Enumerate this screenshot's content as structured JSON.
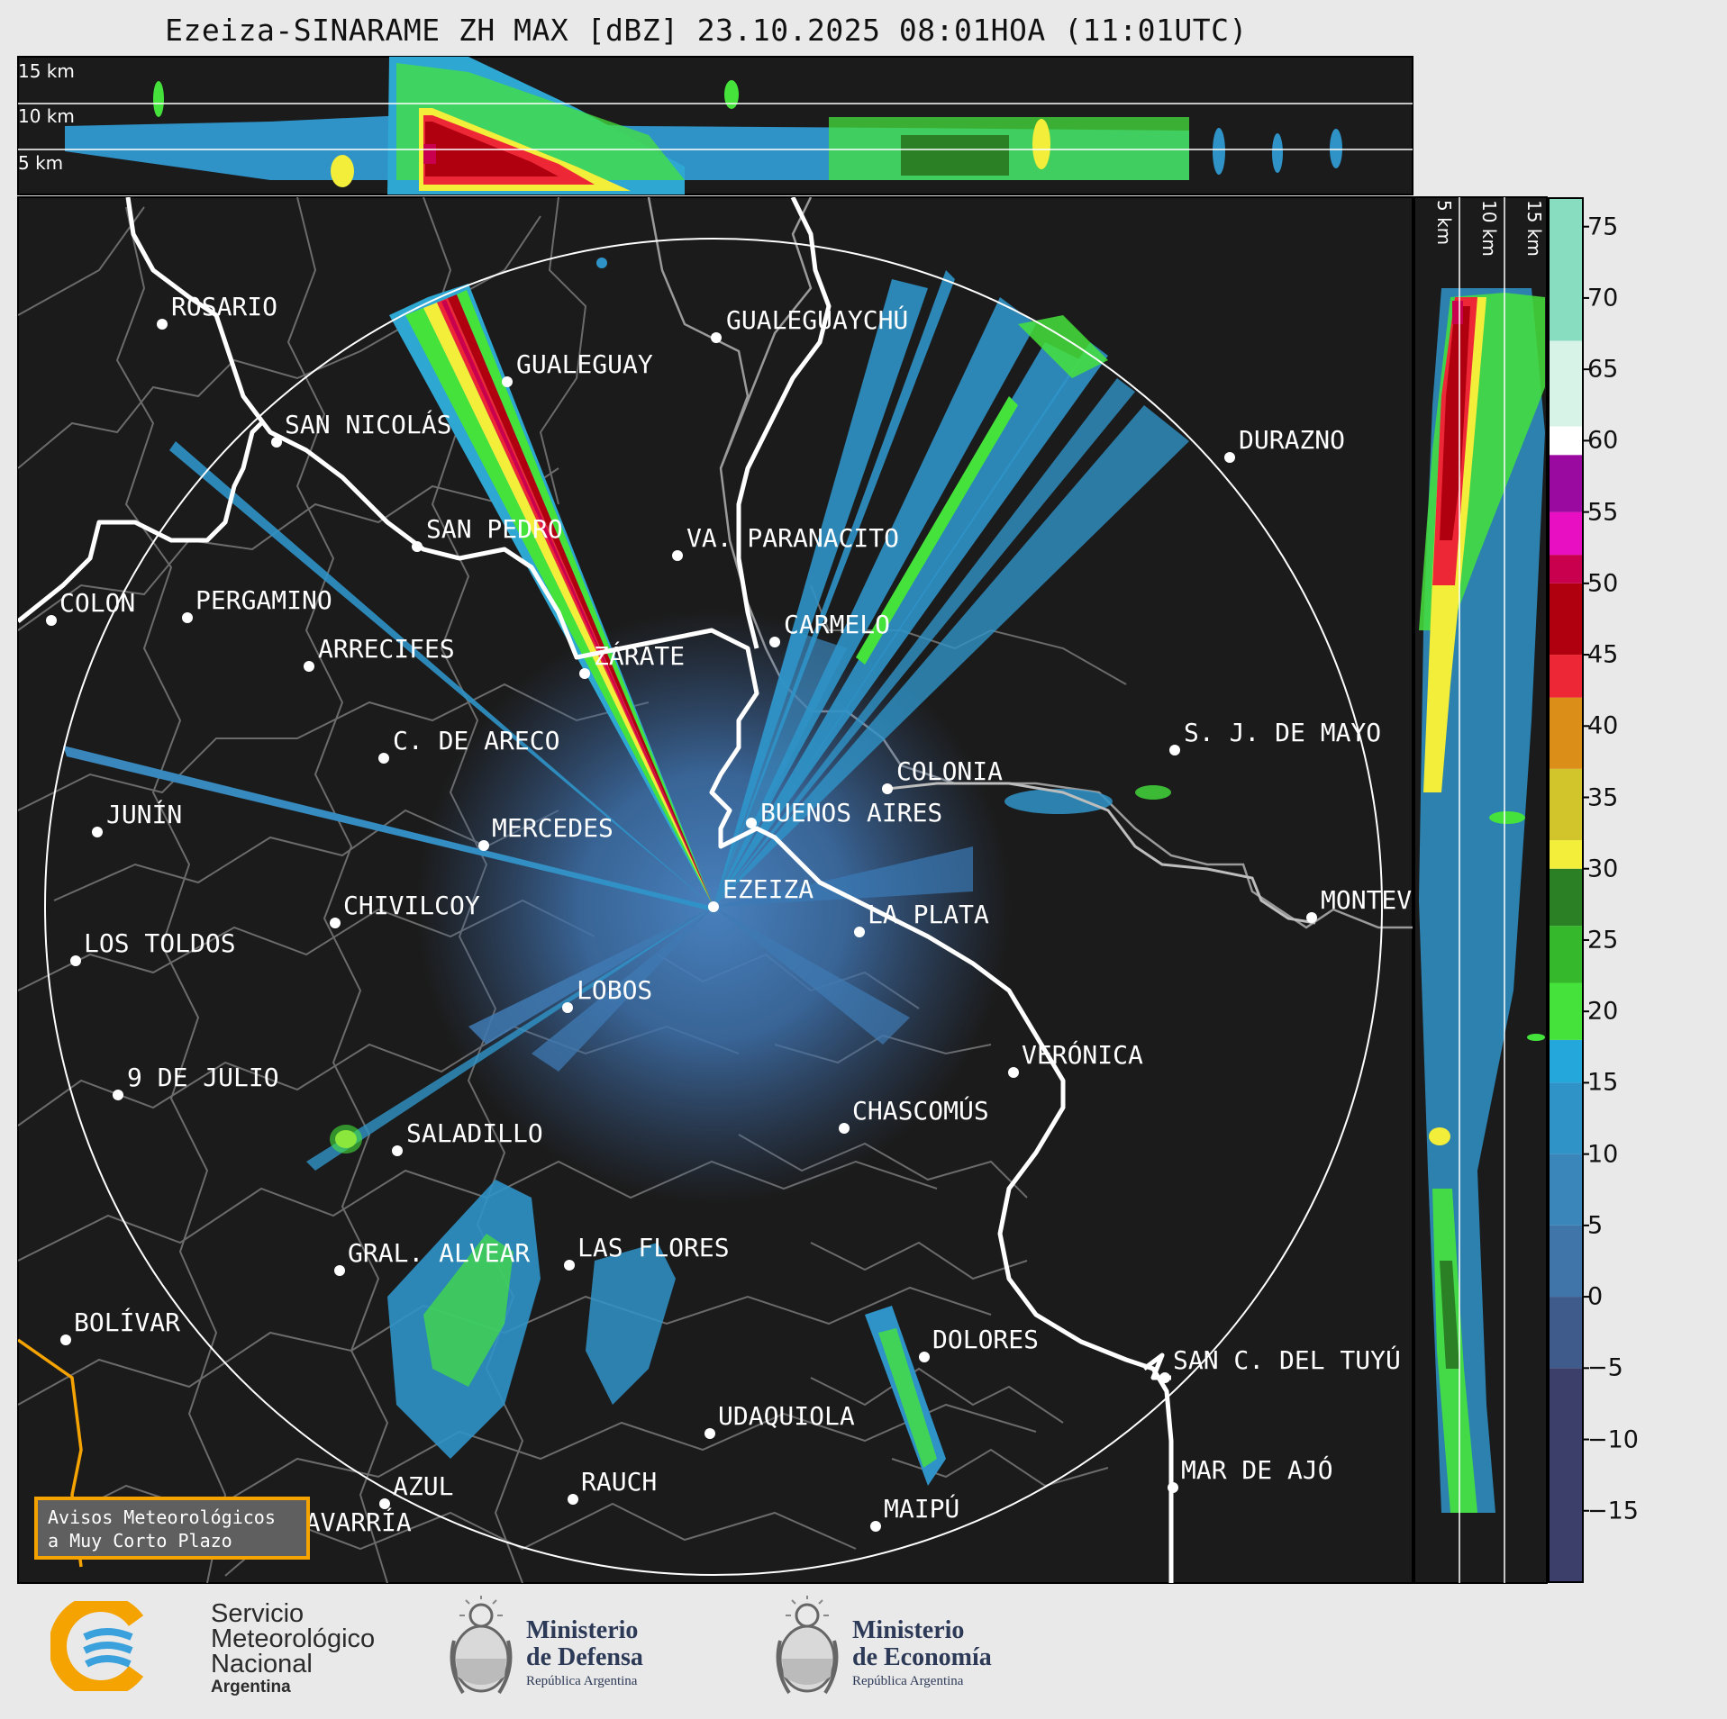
{
  "title": "Ezeiza-SINARAME ZH MAX [dBZ] 23.10.2025 08:01HOA (11:01UTC)",
  "top_panel": {
    "height_labels": [
      "15 km",
      "10 km",
      "5 km"
    ]
  },
  "side_panel": {
    "height_labels": [
      "5 km",
      "10 km",
      "15 km"
    ]
  },
  "colorbar": {
    "ticks": [
      "75",
      "70",
      "65",
      "60",
      "55",
      "50",
      "45",
      "40",
      "35",
      "30",
      "25",
      "20",
      "15",
      "10",
      "5",
      "0",
      "−5",
      "−10",
      "−15"
    ],
    "min_dbz": -20,
    "max_dbz": 77,
    "colors": [
      {
        "from": -20,
        "to": -5,
        "color": "#3b3f6a"
      },
      {
        "from": -5,
        "to": 0,
        "color": "#3e5b8c"
      },
      {
        "from": 0,
        "to": 5,
        "color": "#3f75a8"
      },
      {
        "from": 5,
        "to": 10,
        "color": "#3a86bb"
      },
      {
        "from": 10,
        "to": 15,
        "color": "#2f93c8"
      },
      {
        "from": 15,
        "to": 18,
        "color": "#24a8db"
      },
      {
        "from": 18,
        "to": 22,
        "color": "#46e23c"
      },
      {
        "from": 22,
        "to": 26,
        "color": "#36b82c"
      },
      {
        "from": 26,
        "to": 30,
        "color": "#2b7f24"
      },
      {
        "from": 30,
        "to": 32,
        "color": "#f2ee3a"
      },
      {
        "from": 32,
        "to": 37,
        "color": "#d1c52b"
      },
      {
        "from": 37,
        "to": 42,
        "color": "#db8f18"
      },
      {
        "from": 42,
        "to": 45,
        "color": "#ee2737"
      },
      {
        "from": 45,
        "to": 50,
        "color": "#b00010"
      },
      {
        "from": 50,
        "to": 52,
        "color": "#c8004e"
      },
      {
        "from": 52,
        "to": 55,
        "color": "#e80ec2"
      },
      {
        "from": 55,
        "to": 59,
        "color": "#9b0aa0"
      },
      {
        "from": 59,
        "to": 61,
        "color": "#ffffff"
      },
      {
        "from": 61,
        "to": 67,
        "color": "#d7f2e6"
      },
      {
        "from": 67,
        "to": 77,
        "color": "#88dcc0"
      }
    ]
  },
  "map": {
    "places": [
      {
        "name": "ROSARIO",
        "dot": [
          180,
          360
        ],
        "label": [
          190,
          350
        ]
      },
      {
        "name": "GUALEGUAYCHÚ",
        "dot": [
          795,
          375
        ],
        "label": [
          806,
          365
        ]
      },
      {
        "name": "GUALEGUAY",
        "dot": [
          563,
          424
        ],
        "label": [
          573,
          414
        ]
      },
      {
        "name": "SAN NICOLÁS",
        "dot": [
          307,
          491
        ],
        "label": [
          316,
          481
        ]
      },
      {
        "name": "DURAZNO",
        "dot": [
          1365,
          508
        ],
        "label": [
          1375,
          498
        ]
      },
      {
        "name": "SAN PEDRO",
        "dot": [
          463,
          607
        ],
        "label": [
          473,
          597
        ]
      },
      {
        "name": "VA. PARANACITO",
        "dot": [
          752,
          617
        ],
        "label": [
          762,
          607
        ]
      },
      {
        "name": "COLON",
        "dot": [
          57,
          689
        ],
        "label": [
          66,
          679
        ]
      },
      {
        "name": "PERGAMINO",
        "dot": [
          208,
          686
        ],
        "label": [
          217,
          676
        ]
      },
      {
        "name": "CARMELO",
        "dot": [
          860,
          713
        ],
        "label": [
          870,
          703
        ]
      },
      {
        "name": "ARRECIFES",
        "dot": [
          343,
          740
        ],
        "label": [
          353,
          730
        ]
      },
      {
        "name": "ZÁRATE",
        "dot": [
          649,
          748
        ],
        "label": [
          659,
          738
        ]
      },
      {
        "name": "C. DE ARECO",
        "dot": [
          426,
          842
        ],
        "label": [
          436,
          832
        ]
      },
      {
        "name": "S. J. DE MAYO",
        "dot": [
          1304,
          833
        ],
        "label": [
          1314,
          823
        ]
      },
      {
        "name": "COLONIA",
        "dot": [
          985,
          876
        ],
        "label": [
          995,
          866
        ]
      },
      {
        "name": "BUENOS AIRES",
        "dot": [
          834,
          914
        ],
        "label": [
          844,
          912
        ]
      },
      {
        "name": "JUNÍN",
        "dot": [
          108,
          924
        ],
        "label": [
          118,
          914
        ]
      },
      {
        "name": "MERCEDES",
        "dot": [
          537,
          939
        ],
        "label": [
          546,
          929
        ]
      },
      {
        "name": "EZEIZA",
        "dot": [
          792,
          1007
        ],
        "label": [
          802,
          997
        ]
      },
      {
        "name": "MONTEVIDEO",
        "dot": [
          1456,
          1019
        ],
        "label": [
          1466,
          1009
        ]
      },
      {
        "name": "CHIVILCOY",
        "dot": [
          372,
          1025
        ],
        "label": [
          381,
          1015
        ]
      },
      {
        "name": "LA PLATA",
        "dot": [
          954,
          1035
        ],
        "label": [
          963,
          1025
        ]
      },
      {
        "name": "LOS TOLDOS",
        "dot": [
          84,
          1067
        ],
        "label": [
          93,
          1057
        ]
      },
      {
        "name": "LOBOS",
        "dot": [
          630,
          1119
        ],
        "label": [
          640,
          1109
        ]
      },
      {
        "name": "VERÓNICA",
        "dot": [
          1125,
          1191
        ],
        "label": [
          1134,
          1181
        ]
      },
      {
        "name": "9 DE JULIO",
        "dot": [
          131,
          1216
        ],
        "label": [
          141,
          1206
        ]
      },
      {
        "name": "CHASCOMÚS",
        "dot": [
          937,
          1253
        ],
        "label": [
          946,
          1243
        ]
      },
      {
        "name": "SALADILLO",
        "dot": [
          441,
          1278
        ],
        "label": [
          451,
          1268
        ]
      },
      {
        "name": "GRAL. ALVEAR",
        "dot": [
          377,
          1411
        ],
        "label": [
          386,
          1401
        ]
      },
      {
        "name": "LAS FLORES",
        "dot": [
          632,
          1405
        ],
        "label": [
          641,
          1395
        ]
      },
      {
        "name": "BOLÍVAR",
        "dot": [
          73,
          1488
        ],
        "label": [
          82,
          1478
        ]
      },
      {
        "name": "DOLORES",
        "dot": [
          1026,
          1507
        ],
        "label": [
          1035,
          1497
        ]
      },
      {
        "name": "SAN C. DEL TUYÚ",
        "dot": [
          1293,
          1530
        ],
        "label": [
          1302,
          1520
        ]
      },
      {
        "name": "UDAQUIOLA",
        "dot": [
          788,
          1592
        ],
        "label": [
          797,
          1582
        ]
      },
      {
        "name": "MAR DE AJÓ",
        "dot": [
          1302,
          1652
        ],
        "label": [
          1311,
          1642
        ]
      },
      {
        "name": "RAUCH",
        "dot": [
          636,
          1665
        ],
        "label": [
          645,
          1655
        ]
      },
      {
        "name": "AZUL",
        "dot": [
          427,
          1670
        ],
        "label": [
          436,
          1660
        ]
      },
      {
        "name": "OLAVARRÍA",
        "dot": [
          296,
          1710
        ],
        "label": [
          305,
          1700
        ]
      },
      {
        "name": "MAIPÚ",
        "dot": [
          972,
          1695
        ],
        "label": [
          981,
          1685
        ]
      }
    ]
  },
  "avisos_box": {
    "line1": "Avisos Meteorológicos",
    "line2": "a Muy Corto Plazo"
  },
  "logos": {
    "smn": {
      "line1": "Servicio",
      "line2": "Meteorológico",
      "line3": "Nacional",
      "line4": "Argentina",
      "colors": [
        "#f5a300",
        "#3aa1dc"
      ]
    },
    "defensa": {
      "line1": "Ministerio",
      "line2": "de Defensa",
      "line3": "República Argentina"
    },
    "economia": {
      "line1": "Ministerio",
      "line2": "de Economía",
      "line3": "República Argentina"
    }
  }
}
